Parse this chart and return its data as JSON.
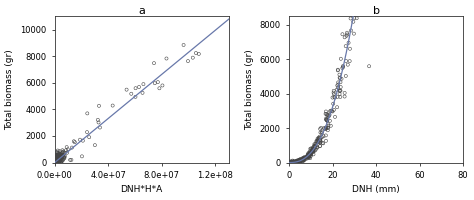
{
  "panel_a": {
    "title": "a",
    "xlabel": "DNH*H*A",
    "ylabel": "Total biomass (gr)",
    "xlim": [
      0,
      130000000.0
    ],
    "ylim": [
      0,
      11000
    ],
    "xticks": [
      0,
      40000000.0,
      80000000.0,
      120000000.0
    ],
    "xtick_labels": [
      "0.0e+00",
      "4.0e+07",
      "8.0e+07",
      "1.2e+08"
    ],
    "yticks": [
      0,
      2000,
      4000,
      6000,
      8000,
      10000
    ],
    "line_color": "#6878aa",
    "line_slope": 8.3e-05,
    "line_intercept": 0
  },
  "panel_b": {
    "title": "b",
    "xlabel": "DNH (mm)",
    "ylabel": "Total biomass (gr)",
    "xlim": [
      0,
      80
    ],
    "ylim": [
      0,
      8500
    ],
    "xticks": [
      0,
      20,
      40,
      60,
      80
    ],
    "yticks": [
      0,
      2000,
      4000,
      6000,
      8000
    ],
    "line_color": "#6878aa",
    "curve_a": 1.8,
    "curve_b": 2.5
  },
  "scatter_color": "none",
  "scatter_edgecolor": "#444444",
  "scatter_size": 5,
  "scatter_linewidth": 0.4,
  "background_color": "#ffffff",
  "figure_bg": "#ffffff",
  "title_fontsize": 8,
  "label_fontsize": 6.5,
  "tick_fontsize": 6
}
